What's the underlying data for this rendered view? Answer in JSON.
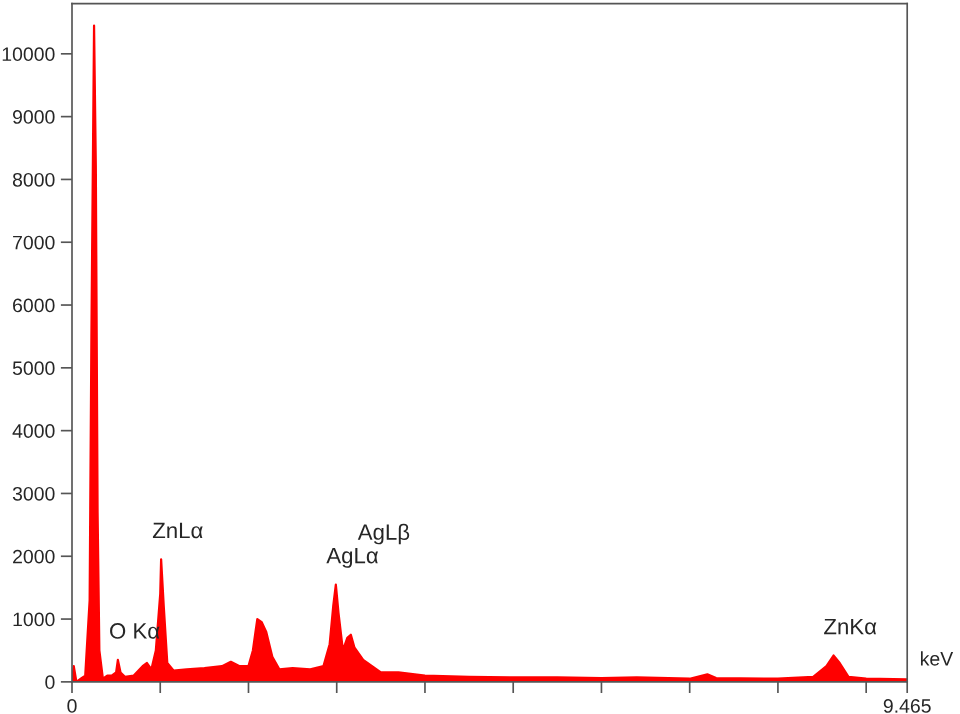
{
  "chart_data": {
    "type": "area",
    "xlabel": "keV",
    "x": [
      0,
      0.02,
      0.05,
      0.1,
      0.15,
      0.2,
      0.22,
      0.25,
      0.27,
      0.29,
      0.31,
      0.35,
      0.4,
      0.45,
      0.5,
      0.52,
      0.55,
      0.6,
      0.7,
      0.8,
      0.85,
      0.9,
      0.95,
      1.0,
      1.01,
      1.04,
      1.08,
      1.15,
      1.3,
      1.5,
      1.7,
      1.8,
      1.9,
      2.0,
      2.05,
      2.1,
      2.15,
      2.2,
      2.27,
      2.35,
      2.5,
      2.7,
      2.85,
      2.92,
      2.96,
      2.99,
      3.02,
      3.07,
      3.12,
      3.16,
      3.2,
      3.3,
      3.4,
      3.5,
      3.7,
      4.0,
      4.5,
      5.0,
      5.5,
      6.0,
      6.4,
      7.0,
      7.2,
      7.3,
      8.0,
      8.4,
      8.55,
      8.63,
      8.7,
      8.8,
      9.0,
      9.465
    ],
    "series": [
      {
        "color": "#ff0000",
        "values": [
          0,
          250,
          0,
          50,
          100,
          1300,
          5500,
          10450,
          8200,
          2700,
          500,
          50,
          100,
          100,
          150,
          350,
          150,
          80,
          100,
          250,
          300,
          200,
          500,
          1400,
          1950,
          1200,
          300,
          180,
          200,
          220,
          250,
          320,
          250,
          250,
          500,
          1000,
          950,
          800,
          400,
          200,
          220,
          200,
          250,
          600,
          1200,
          1550,
          1100,
          500,
          700,
          750,
          550,
          350,
          250,
          150,
          150,
          100,
          80,
          70,
          70,
          60,
          70,
          50,
          120,
          60,
          50,
          80,
          250,
          420,
          300,
          80,
          50,
          40
        ]
      }
    ],
    "xlim": [
      0,
      9.465
    ],
    "xticks": [
      0,
      {
        "value": 1,
        "label": null
      },
      {
        "value": 2,
        "label": null
      },
      {
        "value": 3,
        "label": null
      },
      {
        "value": 4,
        "label": null
      },
      {
        "value": 5,
        "label": null
      },
      {
        "value": 6,
        "label": null
      },
      {
        "value": 7,
        "label": null
      },
      {
        "value": 8,
        "label": null
      },
      {
        "value": 9,
        "label": null
      },
      9.465
    ],
    "ylim": [
      0,
      10800
    ],
    "yticks": [
      0,
      1000,
      2000,
      3000,
      4000,
      5000,
      6000,
      7000,
      8000,
      9000,
      10000
    ],
    "grid": false,
    "annotations": [
      {
        "text": "O Kα",
        "x": 0.52,
        "y": 350
      },
      {
        "text": "ZnLα",
        "x": 1.01,
        "y": 1950
      },
      {
        "text": "AgLα",
        "x": 2.99,
        "y": 1550
      },
      "AgLβ",
      {
        "text": "ZnKα",
        "x": 8.63,
        "y": 420
      }
    ]
  }
}
